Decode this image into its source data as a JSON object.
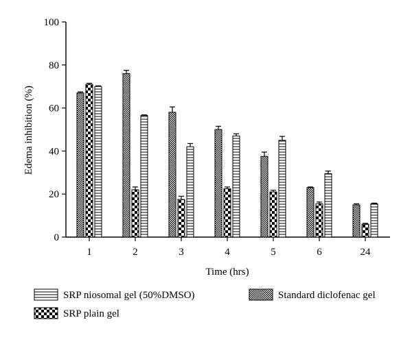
{
  "chart_data": {
    "type": "bar",
    "xlabel": "Time (hrs)",
    "ylabel": "Edema inhibition (%)",
    "ylim": [
      0,
      100
    ],
    "yticks": [
      0,
      20,
      40,
      60,
      80,
      100
    ],
    "categories": [
      "1",
      "2",
      "3",
      "4",
      "5",
      "6",
      "24"
    ],
    "legend_placement": "bottom",
    "series": [
      {
        "name": "Standard diclofenac gel",
        "pattern": "checker-small",
        "values": [
          67,
          76,
          58,
          50,
          37.5,
          23,
          15
        ],
        "errors": [
          0.5,
          1.5,
          2.5,
          1.5,
          2.0,
          0.3,
          0.5
        ]
      },
      {
        "name": "SRP plain gel",
        "pattern": "checker-large",
        "values": [
          71,
          22,
          17.5,
          22.5,
          21,
          15.5,
          6
        ],
        "errors": [
          0.5,
          1.3,
          1.5,
          0.8,
          0.8,
          0.8,
          0.4
        ]
      },
      {
        "name": "SRP niosomal gel (50%DMSO)",
        "pattern": "horizontal-lines",
        "values": [
          70,
          56.5,
          42,
          47,
          45,
          29.5,
          15.5
        ],
        "errors": [
          0.3,
          0.3,
          1.5,
          1.0,
          1.8,
          1.2,
          0.3
        ]
      }
    ]
  }
}
